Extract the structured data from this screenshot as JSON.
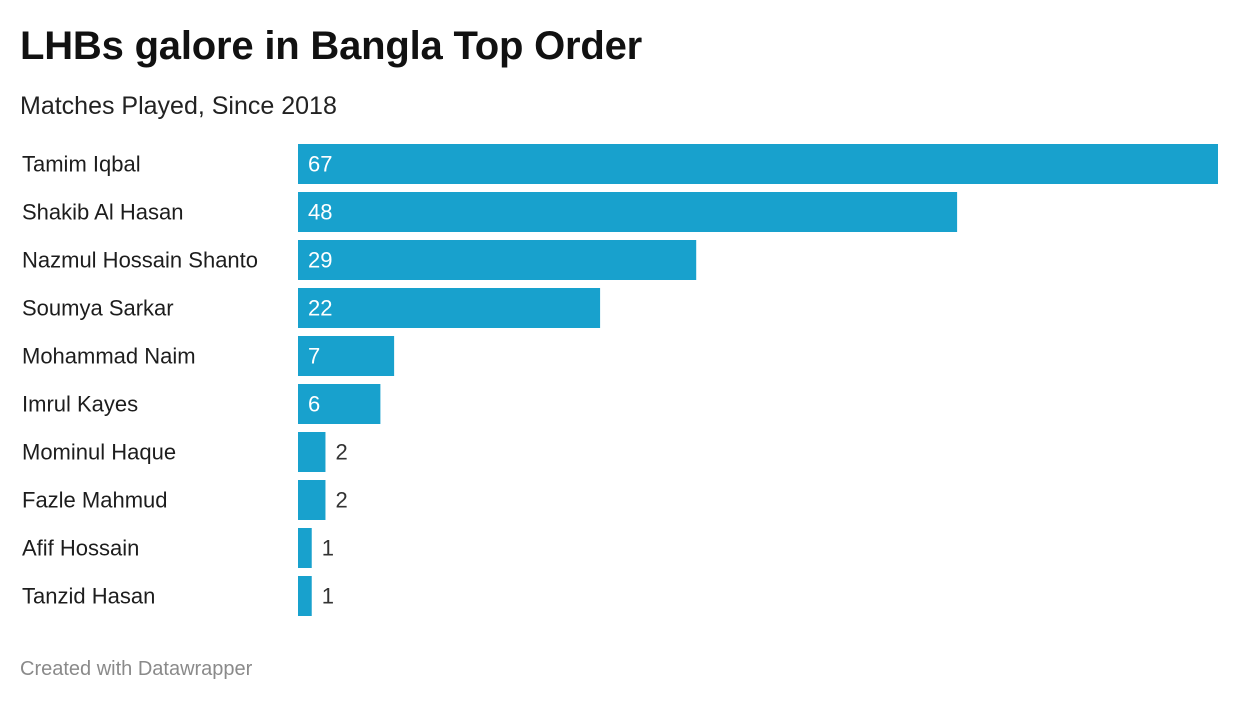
{
  "colors": {
    "bar": "#18a1cd",
    "label_inside": "#ffffff",
    "label_outside": "#333333",
    "text": "#1d1d1d"
  },
  "footer": "Created with Datawrapper",
  "chart_data": {
    "type": "bar",
    "orientation": "horizontal",
    "title": "LHBs galore in Bangla Top Order",
    "subtitle": "Matches Played, Since 2018",
    "categories": [
      "Tamim Iqbal",
      "Shakib Al Hasan",
      "Nazmul Hossain Shanto",
      "Soumya Sarkar",
      "Mohammad Naim",
      "Imrul Kayes",
      "Mominul Haque",
      "Fazle Mahmud",
      "Afif Hossain",
      "Tanzid Hasan"
    ],
    "values": [
      67,
      48,
      29,
      22,
      7,
      6,
      2,
      2,
      1,
      1
    ],
    "xlim": [
      0,
      67
    ],
    "data_labels": true,
    "grid": false,
    "legend": "none"
  }
}
